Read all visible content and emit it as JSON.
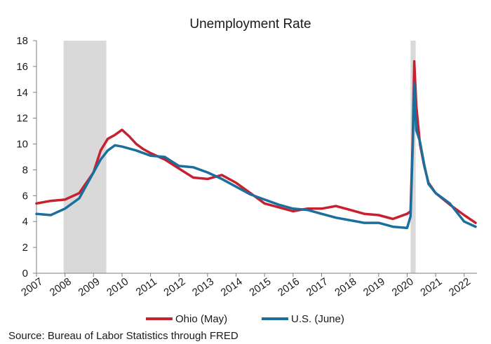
{
  "chart_data": {
    "type": "line",
    "title": "Unemployment Rate",
    "source": "Source: Bureau of Labor Statistics through FRED",
    "xlabel": "",
    "ylabel": "",
    "ylim": [
      0,
      18
    ],
    "yticks": [
      0,
      2,
      4,
      6,
      8,
      10,
      12,
      14,
      16,
      18
    ],
    "xlim": [
      2007.0,
      2022.45
    ],
    "xtick_labels": [
      "2007",
      "2008",
      "2009",
      "2010",
      "2011",
      "2012",
      "2013",
      "2014",
      "2015",
      "2016",
      "2017",
      "2018",
      "2019",
      "2020",
      "2021",
      "2022"
    ],
    "grid": false,
    "legend_position": "bottom",
    "recessions": [
      {
        "start": 2007.95,
        "end": 2009.45
      },
      {
        "start": 2020.12,
        "end": 2020.3
      }
    ],
    "series": [
      {
        "name": "Ohio (May)",
        "color": "#c8202f",
        "x": [
          2007.0,
          2007.5,
          2008.0,
          2008.5,
          2009.0,
          2009.25,
          2009.5,
          2009.75,
          2010.0,
          2010.25,
          2010.5,
          2010.75,
          2011.0,
          2011.5,
          2012.0,
          2012.5,
          2013.0,
          2013.5,
          2014.0,
          2014.5,
          2015.0,
          2015.5,
          2016.0,
          2016.5,
          2017.0,
          2017.5,
          2018.0,
          2018.5,
          2019.0,
          2019.5,
          2020.0,
          2020.12,
          2020.2,
          2020.25,
          2020.32,
          2020.45,
          2020.6,
          2020.75,
          2021.0,
          2021.5,
          2022.0,
          2022.4
        ],
        "values": [
          5.4,
          5.6,
          5.7,
          6.2,
          7.8,
          9.5,
          10.4,
          10.7,
          11.1,
          10.6,
          10.0,
          9.6,
          9.3,
          8.8,
          8.1,
          7.4,
          7.3,
          7.6,
          7.0,
          6.2,
          5.4,
          5.1,
          4.8,
          5.0,
          5.0,
          5.2,
          4.9,
          4.6,
          4.5,
          4.2,
          4.6,
          4.8,
          10.5,
          16.4,
          13.0,
          10.0,
          8.3,
          7.0,
          6.2,
          5.3,
          4.5,
          3.9
        ]
      },
      {
        "name": "U.S. (June)",
        "color": "#1a6f9c",
        "x": [
          2007.0,
          2007.5,
          2008.0,
          2008.5,
          2009.0,
          2009.25,
          2009.5,
          2009.75,
          2010.0,
          2010.5,
          2011.0,
          2011.5,
          2012.0,
          2012.5,
          2013.0,
          2013.5,
          2014.0,
          2014.5,
          2015.0,
          2015.5,
          2016.0,
          2016.5,
          2017.0,
          2017.5,
          2018.0,
          2018.5,
          2019.0,
          2019.5,
          2020.0,
          2020.12,
          2020.2,
          2020.25,
          2020.32,
          2020.45,
          2020.6,
          2020.75,
          2021.0,
          2021.5,
          2022.0,
          2022.4
        ],
        "values": [
          4.6,
          4.5,
          5.0,
          5.8,
          7.8,
          8.8,
          9.5,
          9.9,
          9.8,
          9.5,
          9.1,
          9.0,
          8.3,
          8.2,
          7.8,
          7.3,
          6.7,
          6.1,
          5.7,
          5.3,
          5.0,
          4.9,
          4.6,
          4.3,
          4.1,
          3.9,
          3.9,
          3.6,
          3.5,
          4.4,
          10.0,
          14.7,
          11.1,
          10.2,
          8.4,
          6.9,
          6.2,
          5.4,
          4.0,
          3.6
        ]
      }
    ]
  }
}
